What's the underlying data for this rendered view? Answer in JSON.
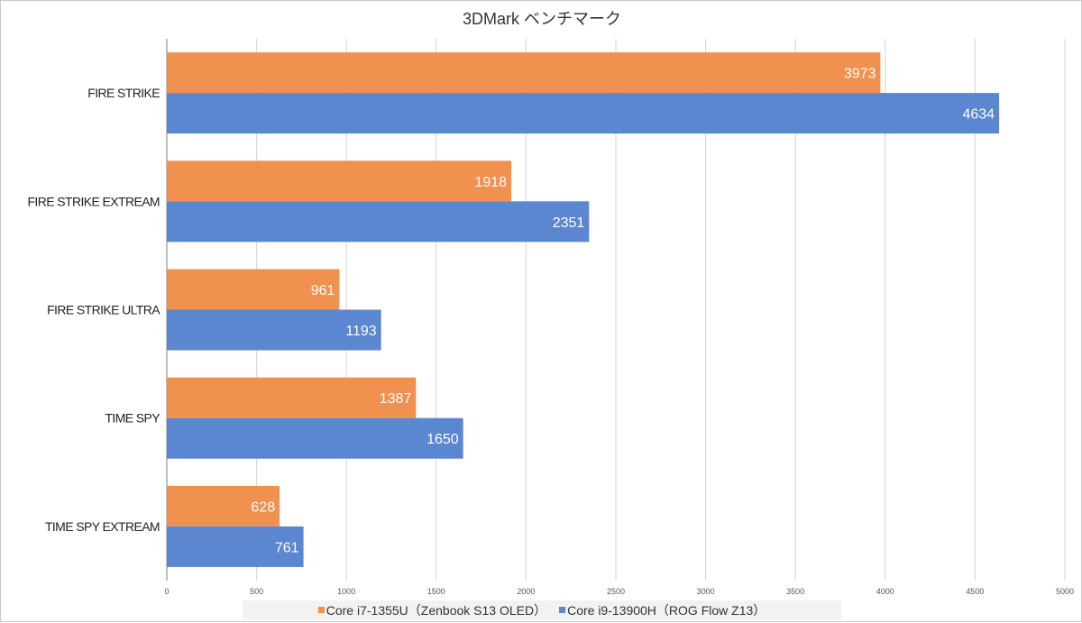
{
  "chart_data": {
    "type": "bar",
    "orientation": "horizontal",
    "title": "3DMark ベンチマーク",
    "categories": [
      "FIRE STRIKE",
      "FIRE STRIKE EXTREAM",
      "FIRE STRIKE ULTRA",
      "TIME SPY",
      "TIME SPY EXTREAM"
    ],
    "series": [
      {
        "name": "Core i7-1355U（Zenbook S13 OLED）",
        "color": "#f09150",
        "values": [
          3973,
          1918,
          961,
          1387,
          628
        ]
      },
      {
        "name": "Core i9-13900H（ROG Flow Z13）",
        "color": "#5b86d0",
        "values": [
          4634,
          2351,
          1193,
          1650,
          761
        ]
      }
    ],
    "xlim": [
      0,
      5000
    ],
    "xticks": [
      0,
      500,
      1000,
      1500,
      2000,
      2500,
      3000,
      3500,
      4000,
      4500,
      5000
    ],
    "grid": true,
    "legend_position": "bottom",
    "data_labels": true
  }
}
